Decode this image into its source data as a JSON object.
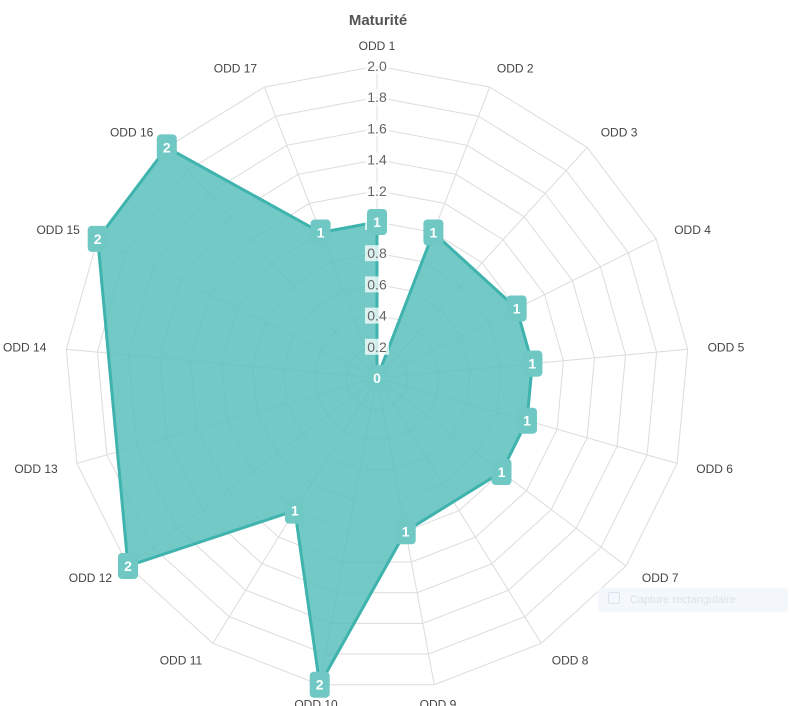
{
  "chart_data": {
    "type": "radar",
    "title": "Maturité",
    "axes": [
      "ODD 1",
      "ODD 2",
      "ODD 3",
      "ODD 4",
      "ODD 5",
      "ODD 6",
      "ODD 7",
      "ODD 8",
      "ODD 9",
      "ODD 10",
      "ODD 11",
      "ODD 12",
      "ODD 13",
      "ODD 14",
      "ODD 15",
      "ODD 16",
      "ODD 17"
    ],
    "radial_ticks": [
      "0.2",
      "0.4",
      "0.6",
      "0.8",
      "1.0",
      "1.2",
      "1.4",
      "1.6",
      "1.8",
      "2.0"
    ],
    "rlim": [
      0,
      2
    ],
    "series": [
      {
        "points": [
          {
            "axis": "ODD 1",
            "value": 1,
            "label": "1"
          },
          {
            "axis": "ODD 1",
            "value": 0,
            "label": "0"
          },
          {
            "axis": "ODD 2",
            "value": 1,
            "label": "1"
          },
          {
            "axis": "ODD 4",
            "value": 1,
            "label": "1"
          },
          {
            "axis": "ODD 4",
            "value": 1,
            "label": "1"
          },
          {
            "axis": "ODD 5",
            "value": 1,
            "label": "1"
          },
          {
            "axis": "ODD 5",
            "value": 1,
            "label": "1"
          },
          {
            "axis": "ODD 6",
            "value": 1,
            "label": "1"
          },
          {
            "axis": "ODD 7",
            "value": 1,
            "label": "1"
          },
          {
            "axis": "ODD 9",
            "value": 1,
            "label": "1"
          },
          {
            "axis": "ODD 10",
            "value": 2,
            "label": "2"
          },
          {
            "axis": "ODD 11",
            "value": 1,
            "label": "1"
          },
          {
            "axis": "ODD 12",
            "value": 2,
            "label": "2"
          },
          {
            "axis": "ODD 15",
            "value": 2,
            "label": "2"
          },
          {
            "axis": "ODD 16",
            "value": 2,
            "label": "2"
          },
          {
            "axis": "ODD 17",
            "value": 1,
            "label": "1"
          }
        ],
        "fill_color": "#5bbfbb",
        "line_color": "#3fb3ad",
        "label_bg_color": "#6fc8c4"
      }
    ],
    "grid": true,
    "legend": "none"
  },
  "overlay": {
    "capture_label": "Capture rectangulaire"
  }
}
